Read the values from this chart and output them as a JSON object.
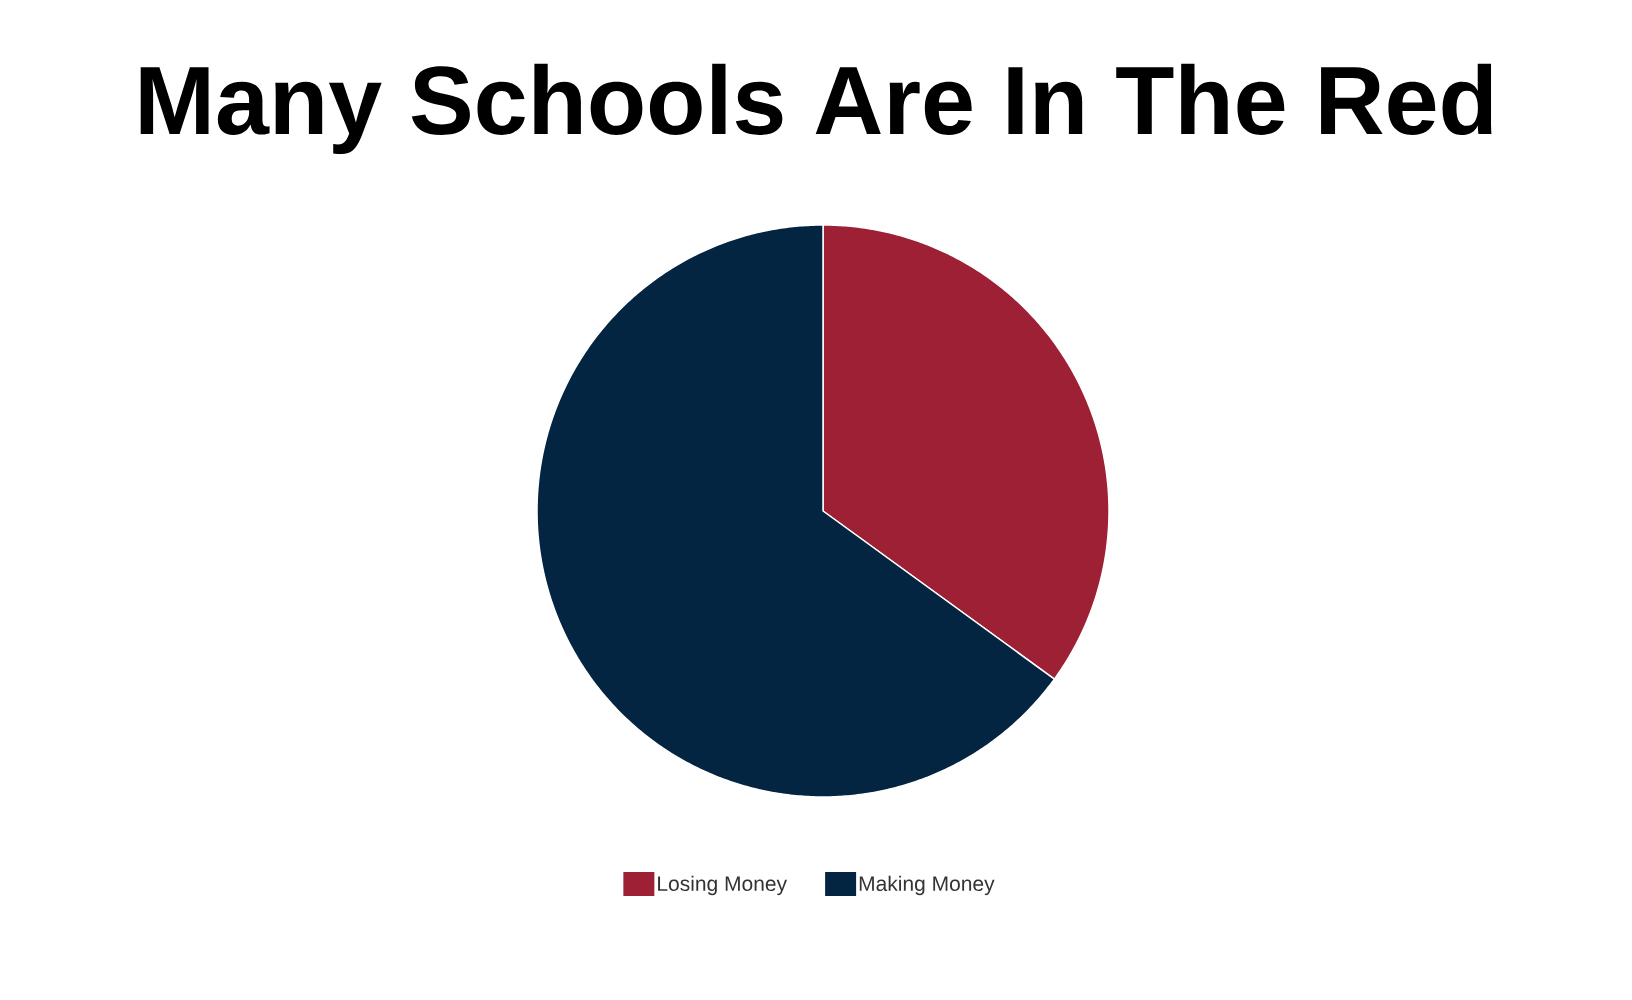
{
  "chart_data": {
    "type": "pie",
    "title": "Many Schools Are In The Red",
    "categories": [
      "Losing Money",
      "Making Money"
    ],
    "values": [
      35,
      65
    ],
    "colors": [
      "#9d2035",
      "#032541"
    ],
    "legend": "bottom"
  }
}
